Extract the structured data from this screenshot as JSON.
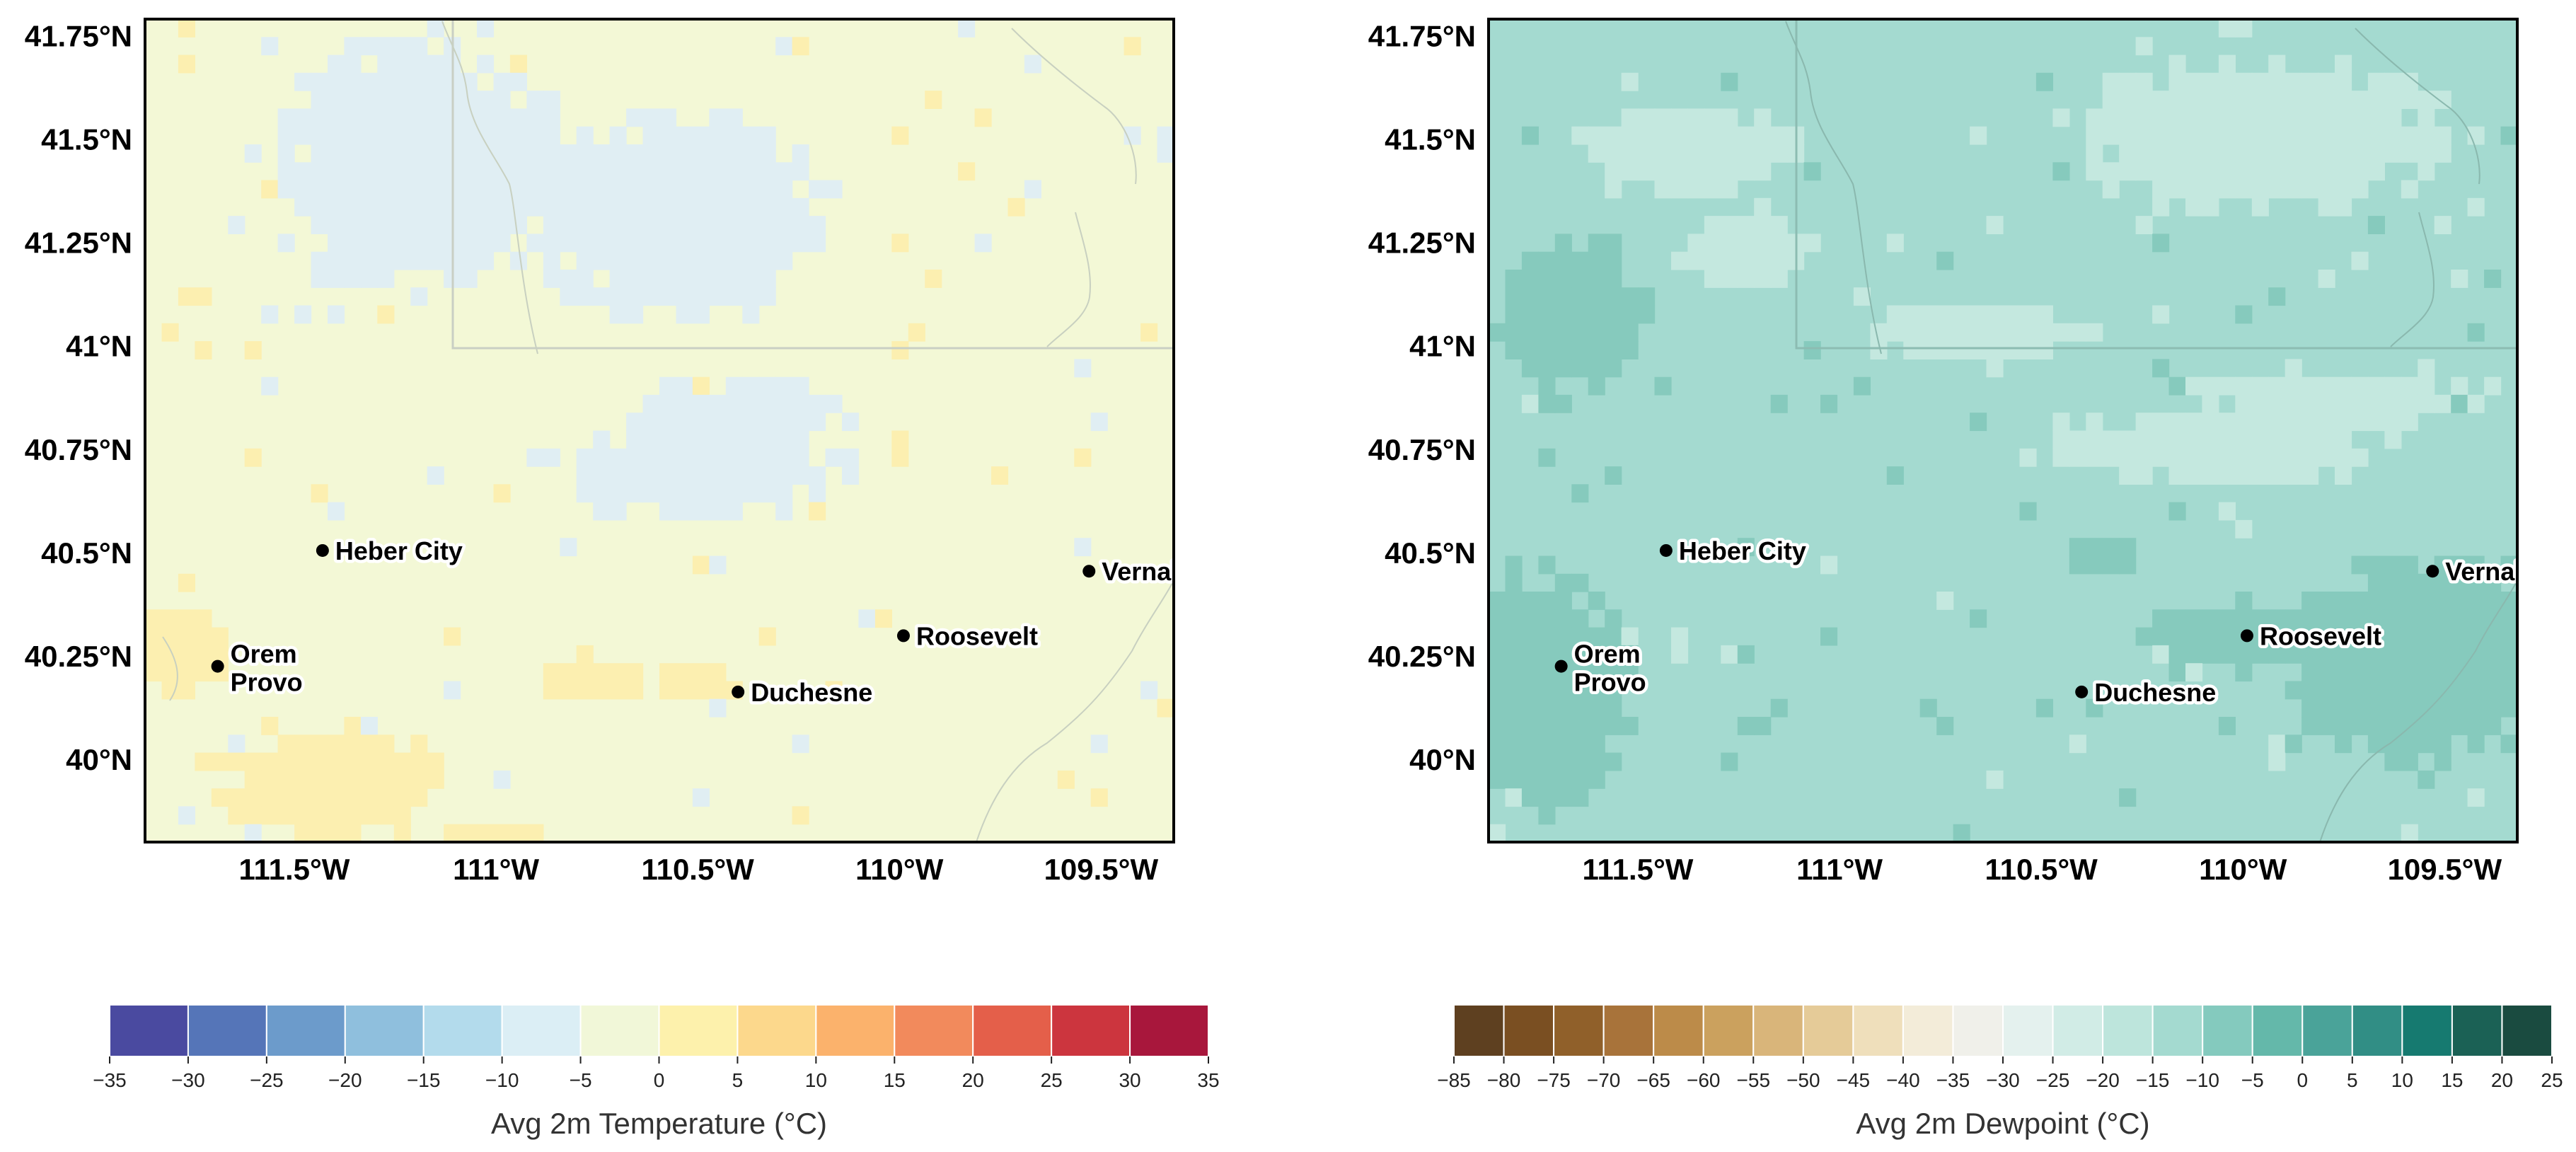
{
  "maps": [
    {
      "id": "temperature",
      "bg_color": "#f3f8d6",
      "patches": [
        {
          "color": "#e0eef3",
          "kind": "cool"
        },
        {
          "color": "#fcefb0",
          "kind": "warm"
        }
      ],
      "colorbar": {
        "label": "Avg 2m Temperature (°C)",
        "ticks": [
          "−35",
          "−30",
          "−25",
          "−20",
          "−15",
          "−10",
          "−5",
          "0",
          "5",
          "10",
          "15",
          "20",
          "25",
          "30",
          "35"
        ],
        "colors": [
          "#4a4aa0",
          "#5575b8",
          "#6c9bcb",
          "#8fbfdd",
          "#b3dbec",
          "#dbeef5",
          "#f1f7d8",
          "#fdf1ac",
          "#fcd88c",
          "#fbb26c",
          "#f28a5c",
          "#e45f4a",
          "#cc353e",
          "#a8173c"
        ]
      }
    },
    {
      "id": "dewpoint",
      "bg_color": "#a4dad0",
      "patches": [
        {
          "color": "#c4e8df",
          "kind": "dry"
        },
        {
          "color": "#86cabd",
          "kind": "moist"
        }
      ],
      "colorbar": {
        "label": "Avg 2m Dewpoint (°C)",
        "ticks": [
          "−85",
          "−80",
          "−75",
          "−70",
          "−65",
          "−60",
          "−55",
          "−50",
          "−45",
          "−40",
          "−35",
          "−30",
          "−25",
          "−20",
          "−15",
          "−10",
          "−5",
          "0",
          "5",
          "10",
          "15",
          "20",
          "25"
        ],
        "colors": [
          "#5e4020",
          "#7a4f22",
          "#90602a",
          "#a8733a",
          "#bc8b49",
          "#cba15e",
          "#d9b57a",
          "#e5cb98",
          "#efdfbb",
          "#f3ecd9",
          "#f0f0ea",
          "#e4f1ee",
          "#d1ece6",
          "#bde5dc",
          "#a4dad0",
          "#84cabe",
          "#64b8aa",
          "#4aa399",
          "#318e85",
          "#167a70",
          "#1b6155",
          "#1a4b40"
        ]
      }
    }
  ],
  "lat_ticks": [
    "41.75°N",
    "41.5°N",
    "41.25°N",
    "41°N",
    "40.75°N",
    "40.5°N",
    "40.25°N",
    "40°N"
  ],
  "lon_ticks": [
    "111.5°W",
    "111°W",
    "110.5°W",
    "110°W",
    "109.5°W"
  ],
  "extent": {
    "lon_min": -111.87,
    "lon_max": -109.32,
    "lat_min": 39.8,
    "lat_max": 41.79
  },
  "cities": [
    {
      "name": "Heber City",
      "lon": -111.43,
      "lat": 40.505,
      "label_pos": "right"
    },
    {
      "name": "Orem",
      "lon": -111.69,
      "lat": 40.225,
      "label_pos": "right-up"
    },
    {
      "name": "Provo",
      "lon": -111.69,
      "lat": 40.225,
      "label_pos": "right-down"
    },
    {
      "name": "Duchesne",
      "lon": -110.4,
      "lat": 40.163,
      "label_pos": "right"
    },
    {
      "name": "Roosevelt",
      "lon": -109.99,
      "lat": 40.299,
      "label_pos": "right"
    },
    {
      "name": "Vernal",
      "lon": -109.53,
      "lat": 40.455,
      "label_pos": "right"
    }
  ]
}
